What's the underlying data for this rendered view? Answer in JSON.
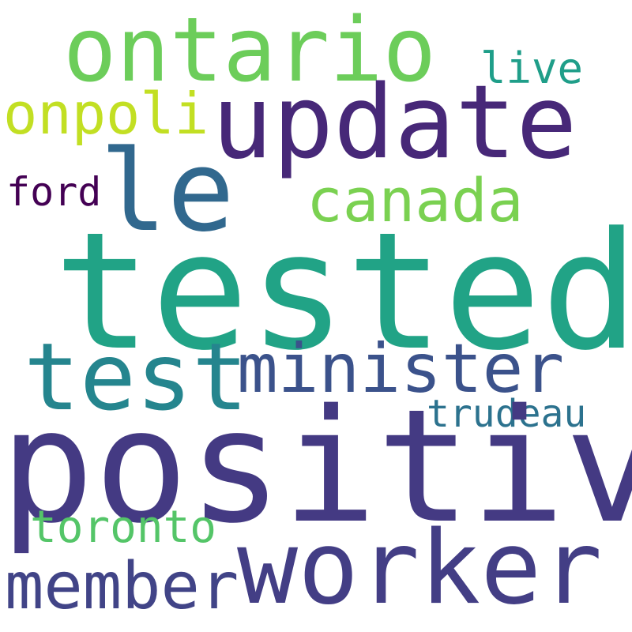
{
  "words": [
    {
      "id": "ontario",
      "text": "ontario",
      "color": "#6ccd5a"
    },
    {
      "id": "update",
      "text": "update",
      "color": "#472878"
    },
    {
      "id": "live",
      "text": "live",
      "color": "#1f9e89"
    },
    {
      "id": "onpoli",
      "text": "onpoli",
      "color": "#c2df23"
    },
    {
      "id": "le",
      "text": "le",
      "color": "#31688e"
    },
    {
      "id": "ford",
      "text": "ford",
      "color": "#440154"
    },
    {
      "id": "canada",
      "text": "canada",
      "color": "#7ad151"
    },
    {
      "id": "tested",
      "text": "tested",
      "color": "#21a386"
    },
    {
      "id": "test",
      "text": "test",
      "color": "#25858e"
    },
    {
      "id": "minister",
      "text": "minister",
      "color": "#3b528b"
    },
    {
      "id": "trudeau",
      "text": "trudeau",
      "color": "#2c728e"
    },
    {
      "id": "positive",
      "text": "positive",
      "color": "#443a83"
    },
    {
      "id": "toronto",
      "text": "toronto",
      "color": "#54c568"
    },
    {
      "id": "worker",
      "text": "worker",
      "color": "#433e85"
    },
    {
      "id": "member",
      "text": "member",
      "color": "#414487"
    }
  ]
}
